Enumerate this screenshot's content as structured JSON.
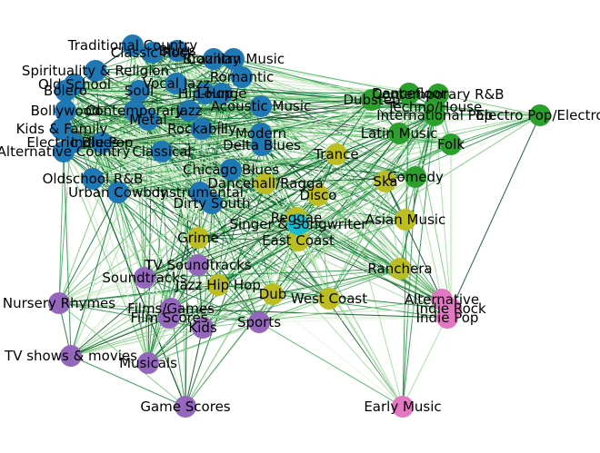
{
  "colors": {
    "background": "#ffffff",
    "edge_palette": [
      "#e5f5e0",
      "#c7e9c0",
      "#a1d99b",
      "#74c476",
      "#41ab5d",
      "#238b45",
      "#006d2c",
      "#00441b"
    ],
    "clusters": {
      "blue": "#1f77b4",
      "green": "#2ca02c",
      "olive": "#bcbd22",
      "purple": "#9467bd",
      "pink": "#e377c2",
      "cyan": "#17becf"
    }
  },
  "graph": {
    "nodes": [
      {
        "label": "Traditional Country",
        "cluster": "blue"
      },
      {
        "label": "Classic Rock",
        "cluster": "blue"
      },
      {
        "label": "Blues",
        "cluster": "blue"
      },
      {
        "label": "Country",
        "cluster": "blue"
      },
      {
        "label": "Brazilian Music",
        "cluster": "blue"
      },
      {
        "label": "Spirituality & Religion",
        "cluster": "blue"
      },
      {
        "label": "Romantic",
        "cluster": "blue"
      },
      {
        "label": "Old School",
        "cluster": "blue"
      },
      {
        "label": "Vocal Jazz",
        "cluster": "blue"
      },
      {
        "label": "Bolero",
        "cluster": "blue"
      },
      {
        "label": "Soul",
        "cluster": "blue"
      },
      {
        "label": "Hip-Hop",
        "cluster": "blue"
      },
      {
        "label": "Lounge",
        "cluster": "blue"
      },
      {
        "label": "Acoustic Music",
        "cluster": "blue"
      },
      {
        "label": "Bollywood",
        "cluster": "blue"
      },
      {
        "label": "Contemporary",
        "cluster": "blue"
      },
      {
        "label": "Jazz",
        "cluster": "blue"
      },
      {
        "label": "Metal",
        "cluster": "blue"
      },
      {
        "label": "Kids & Family",
        "cluster": "blue"
      },
      {
        "label": "Rockabilly",
        "cluster": "blue"
      },
      {
        "label": "Electric Blues",
        "cluster": "blue"
      },
      {
        "label": "Indie Pop",
        "cluster": "blue"
      },
      {
        "label": "Alternative Country",
        "cluster": "blue"
      },
      {
        "label": "Classical",
        "cluster": "blue"
      },
      {
        "label": "Modern",
        "cluster": "blue"
      },
      {
        "label": "Delta Blues",
        "cluster": "blue"
      },
      {
        "label": "Chicago Blues",
        "cluster": "blue"
      },
      {
        "label": "Oldschool R&B",
        "cluster": "blue"
      },
      {
        "label": "Urban Cowboy",
        "cluster": "blue"
      },
      {
        "label": "Instrumental",
        "cluster": "blue"
      },
      {
        "label": "Dirty South",
        "cluster": "blue"
      },
      {
        "label": "Dancefloor",
        "cluster": "green"
      },
      {
        "label": "Contemporary R&B",
        "cluster": "green"
      },
      {
        "label": "Dubstep",
        "cluster": "green"
      },
      {
        "label": "Techno/House",
        "cluster": "green"
      },
      {
        "label": "International Pop",
        "cluster": "green"
      },
      {
        "label": "Electro Pop/Electro",
        "cluster": "green"
      },
      {
        "label": "Latin Music",
        "cluster": "green"
      },
      {
        "label": "Folk",
        "cluster": "green"
      },
      {
        "label": "Comedy",
        "cluster": "green"
      },
      {
        "label": "Trance",
        "cluster": "olive"
      },
      {
        "label": "Dancehall/Ragga",
        "cluster": "olive"
      },
      {
        "label": "Disco",
        "cluster": "olive"
      },
      {
        "label": "Ska",
        "cluster": "olive"
      },
      {
        "label": "Reggae",
        "cluster": "olive"
      },
      {
        "label": "Asian Music",
        "cluster": "olive"
      },
      {
        "label": "Grime",
        "cluster": "olive"
      },
      {
        "label": "East Coast",
        "cluster": "olive"
      },
      {
        "label": "Ranchera",
        "cluster": "olive"
      },
      {
        "label": "Jazz Hip Hop",
        "cluster": "olive"
      },
      {
        "label": "Dub",
        "cluster": "olive"
      },
      {
        "label": "West Coast",
        "cluster": "olive"
      },
      {
        "label": "Singer & Songwriter",
        "cluster": "cyan"
      },
      {
        "label": "TV Soundtracks",
        "cluster": "purple"
      },
      {
        "label": "Soundtracks",
        "cluster": "purple"
      },
      {
        "label": "Nursery Rhymes",
        "cluster": "purple"
      },
      {
        "label": "Films/Games",
        "cluster": "purple"
      },
      {
        "label": "Film Scores",
        "cluster": "purple"
      },
      {
        "label": "Kids",
        "cluster": "purple"
      },
      {
        "label": "Sports",
        "cluster": "purple"
      },
      {
        "label": "TV shows & movies",
        "cluster": "purple"
      },
      {
        "label": "Musicals",
        "cluster": "purple"
      },
      {
        "label": "Game Scores",
        "cluster": "purple"
      },
      {
        "label": "Alternative",
        "cluster": "pink"
      },
      {
        "label": "Indie Rock",
        "cluster": "pink"
      },
      {
        "label": "Indie Pop",
        "cluster": "pink"
      },
      {
        "label": "Early Music",
        "cluster": "pink"
      }
    ]
  }
}
